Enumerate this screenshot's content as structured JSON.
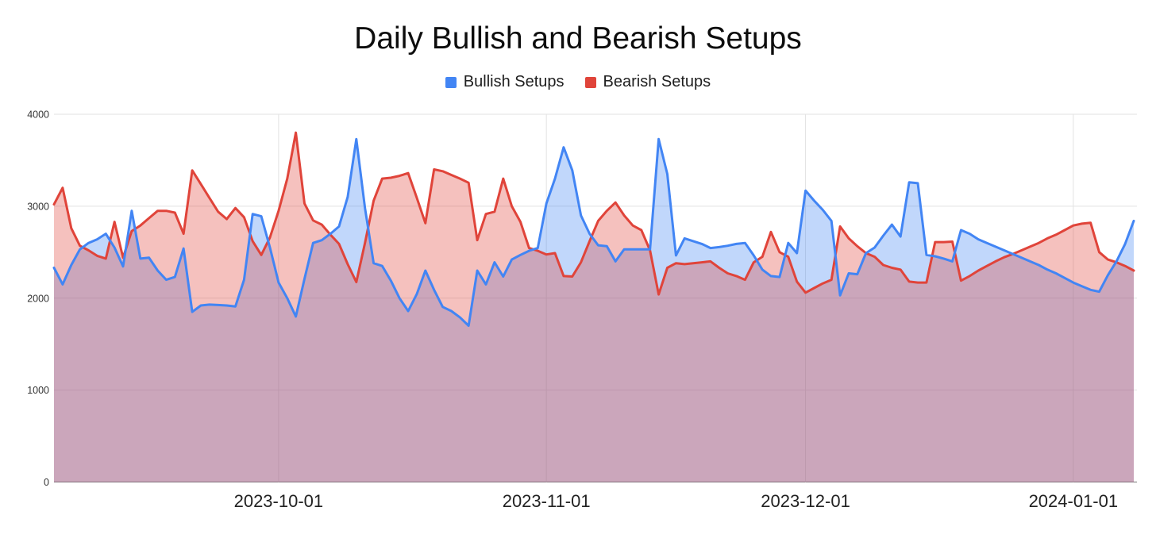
{
  "title": "Daily Bullish and Bearish Setups",
  "legend": {
    "items": [
      {
        "label": "Bullish Setups",
        "color": "#4285F4"
      },
      {
        "label": "Bearish Setups",
        "color": "#E0443A"
      }
    ]
  },
  "colors": {
    "background": "#FFFFFF",
    "gridline": "#E2E2E2",
    "axis_line": "#757575",
    "y_axis_text": "#333333",
    "x_axis_text": "#222222",
    "title_text": "#0D0D0D",
    "bullish_blue": "#4285F4",
    "bearish_red": "#E0443A"
  },
  "chart_data": {
    "type": "area",
    "title": "Daily Bullish and Bearish Setups",
    "xlabel": "",
    "ylabel": "",
    "ylim": [
      0,
      4000
    ],
    "y_ticks": [
      0,
      1000,
      2000,
      3000,
      4000
    ],
    "grid": true,
    "legend_position": "top",
    "x_start_date": "2023-09-05",
    "x_interval": "daily",
    "x_tick_labels": [
      {
        "label": "2023-10-01",
        "index": 26
      },
      {
        "label": "2023-11-01",
        "index": 57
      },
      {
        "label": "2023-12-01",
        "index": 87
      },
      {
        "label": "2024-01-01",
        "index": 118
      }
    ],
    "series": [
      {
        "name": "Bullish Setups",
        "color": "#4285F4",
        "fill_opacity": 0.33,
        "values": [
          2330,
          2150,
          2360,
          2530,
          2600,
          2640,
          2700,
          2550,
          2345,
          2950,
          2430,
          2440,
          2300,
          2200,
          2230,
          2540,
          1850,
          1920,
          1930,
          1925,
          1920,
          1910,
          2200,
          2915,
          2890,
          2550,
          2170,
          2000,
          1800,
          2210,
          2600,
          2630,
          2700,
          2780,
          3100,
          3730,
          2980,
          2380,
          2350,
          2190,
          2000,
          1860,
          2045,
          2300,
          2090,
          1905,
          1860,
          1790,
          1700,
          2300,
          2150,
          2390,
          2235,
          2420,
          2470,
          2515,
          2545,
          3030,
          3300,
          3640,
          3390,
          2900,
          2700,
          2575,
          2565,
          2400,
          2530,
          2530,
          2530,
          2530,
          3730,
          3350,
          2465,
          2650,
          2620,
          2590,
          2545,
          2555,
          2570,
          2590,
          2600,
          2465,
          2310,
          2240,
          2230,
          2600,
          2490,
          3170,
          3060,
          2960,
          2840,
          2030,
          2270,
          2260,
          2490,
          2550,
          2680,
          2800,
          2670,
          3260,
          3250,
          2470,
          2455,
          2430,
          2400,
          2740,
          2700,
          2640,
          2600,
          2560,
          2520,
          2480,
          2440,
          2400,
          2360,
          2310,
          2270,
          2220,
          2170,
          2130,
          2090,
          2070,
          2250,
          2400,
          2590,
          2840
        ]
      },
      {
        "name": "Bearish Setups",
        "color": "#E0443A",
        "fill_opacity": 0.33,
        "values": [
          3020,
          3200,
          2760,
          2570,
          2520,
          2460,
          2430,
          2830,
          2440,
          2730,
          2790,
          2870,
          2950,
          2950,
          2930,
          2700,
          3390,
          3240,
          3090,
          2940,
          2860,
          2980,
          2880,
          2620,
          2470,
          2660,
          2950,
          3300,
          3800,
          3030,
          2845,
          2800,
          2690,
          2590,
          2370,
          2175,
          2600,
          3060,
          3300,
          3310,
          3330,
          3360,
          3090,
          2815,
          3400,
          3380,
          3340,
          3300,
          3255,
          2630,
          2915,
          2940,
          3300,
          3000,
          2830,
          2545,
          2515,
          2475,
          2490,
          2240,
          2235,
          2390,
          2620,
          2840,
          2950,
          3040,
          2900,
          2790,
          2740,
          2520,
          2040,
          2330,
          2380,
          2370,
          2380,
          2390,
          2400,
          2330,
          2270,
          2240,
          2200,
          2390,
          2450,
          2720,
          2500,
          2450,
          2180,
          2060,
          2110,
          2160,
          2200,
          2780,
          2650,
          2565,
          2490,
          2450,
          2360,
          2330,
          2310,
          2180,
          2170,
          2170,
          2610,
          2610,
          2615,
          2190,
          2240,
          2300,
          2350,
          2400,
          2445,
          2480,
          2520,
          2560,
          2600,
          2650,
          2690,
          2740,
          2790,
          2810,
          2820,
          2500,
          2420,
          2390,
          2350,
          2300
        ]
      }
    ]
  }
}
